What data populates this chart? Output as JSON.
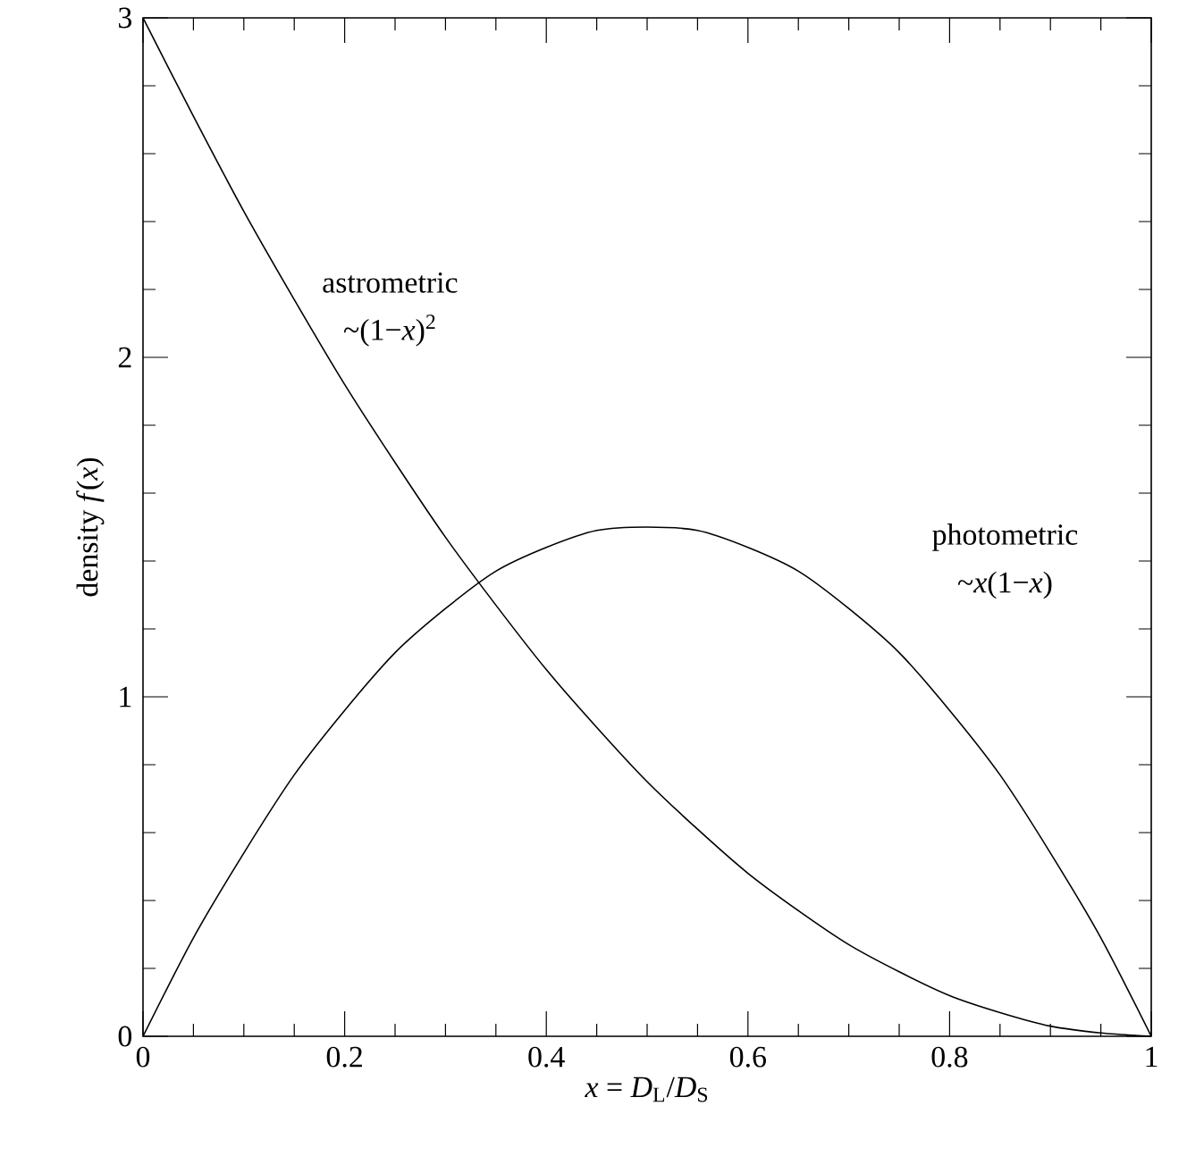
{
  "chart_data": {
    "type": "line",
    "xlabel": "*x* = *D*$_{L}$/*D*$_{S}$",
    "ylabel": "density *f*(*x*)",
    "x": [
      0,
      0.05,
      0.1,
      0.15,
      0.2,
      0.25,
      0.3,
      0.35,
      0.4,
      0.45,
      0.5,
      0.55,
      0.6,
      0.65,
      0.7,
      0.75,
      0.8,
      0.85,
      0.9,
      0.95,
      1
    ],
    "series": [
      {
        "color": "#000000",
        "values": [
          3,
          2.71,
          2.43,
          2.17,
          1.92,
          1.69,
          1.47,
          1.27,
          1.08,
          0.91,
          0.75,
          0.61,
          0.48,
          0.37,
          0.27,
          0.19,
          0.12,
          0.07,
          0.03,
          0.01,
          0
        ]
      },
      {
        "color": "#000000",
        "values": [
          0,
          0.29,
          0.54,
          0.77,
          0.96,
          1.13,
          1.26,
          1.37,
          1.44,
          1.49,
          1.5,
          1.49,
          1.44,
          1.37,
          1.26,
          1.13,
          0.96,
          0.77,
          0.54,
          0.29,
          0
        ]
      }
    ],
    "annotations": [
      "astrometric",
      "~(1−*x*)$^{2}$",
      "photometric",
      "~*x*(1−*x*)"
    ],
    "xlim": [
      0,
      1
    ],
    "ylim": [
      0,
      3
    ],
    "xticks": [
      0,
      0.2,
      0.4,
      0.6,
      0.8,
      1
    ],
    "yticks": [
      0,
      1,
      2,
      3
    ],
    "grid": false,
    "marker": "none",
    "line_style": "solid"
  }
}
